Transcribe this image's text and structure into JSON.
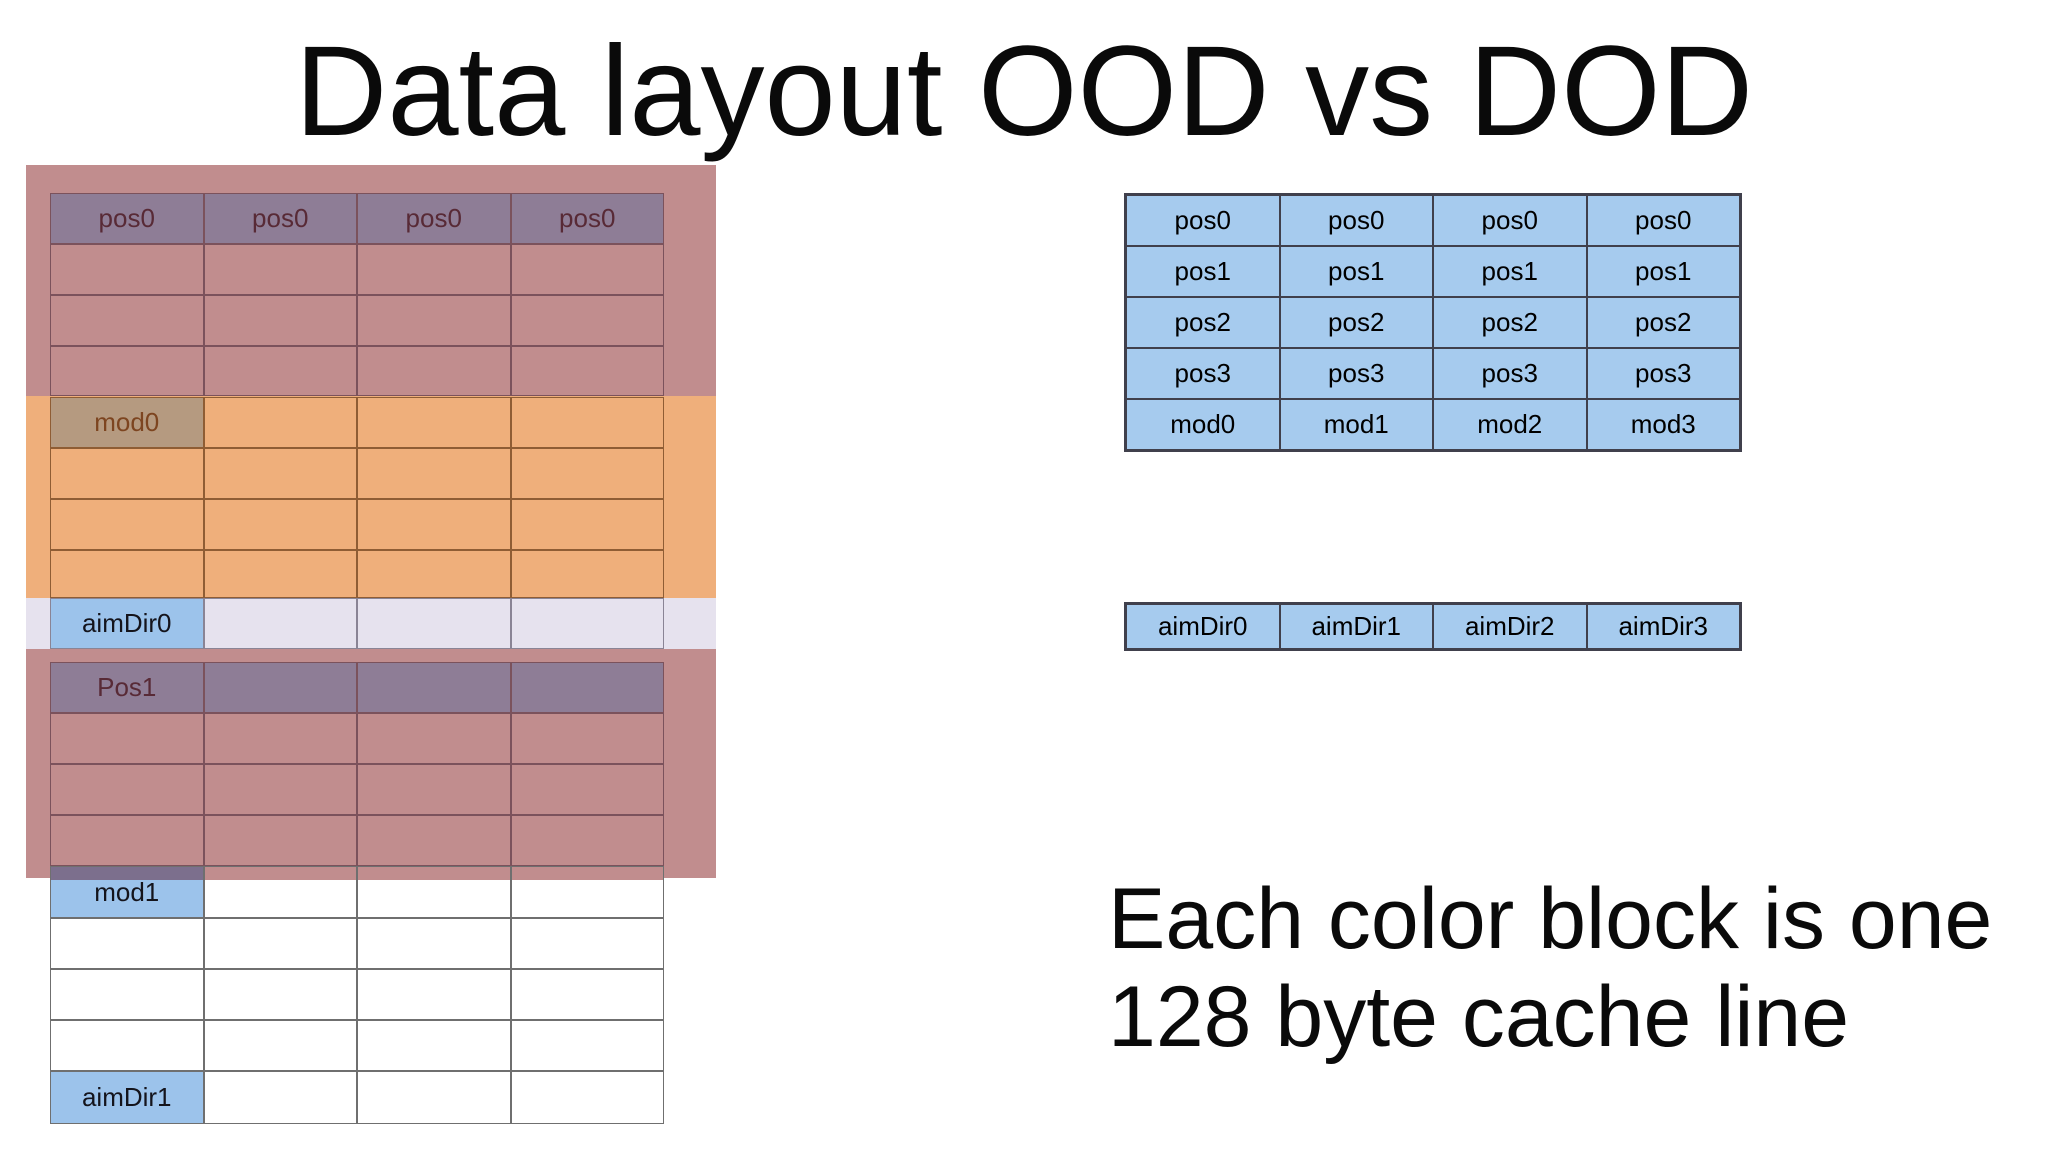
{
  "title": "Data layout OOD vs DOD",
  "caption": {
    "line1": "Each color block is one",
    "line2": "128 byte cache line"
  },
  "ood_diagram": {
    "rows": [
      [
        "pos0",
        "pos0",
        "pos0",
        "pos0"
      ],
      [
        "",
        "",
        "",
        ""
      ],
      [
        "",
        "",
        "",
        ""
      ],
      [
        "",
        "",
        "",
        ""
      ],
      [
        "mod0",
        "",
        "",
        ""
      ],
      [
        "",
        "",
        "",
        ""
      ],
      [
        "",
        "",
        "",
        ""
      ],
      [
        "",
        "",
        "",
        ""
      ],
      [
        "aimDir0",
        "",
        "",
        ""
      ],
      [
        "Pos1",
        "",
        "",
        ""
      ],
      [
        "",
        "",
        "",
        ""
      ],
      [
        "",
        "",
        "",
        ""
      ],
      [
        "",
        "",
        "",
        ""
      ],
      [
        "mod1",
        "",
        "",
        ""
      ],
      [
        "",
        "",
        "",
        ""
      ],
      [
        "",
        "",
        "",
        ""
      ],
      [
        "",
        "",
        "",
        ""
      ],
      [
        "aimDir1",
        "",
        "",
        ""
      ]
    ]
  },
  "dod_diagram": {
    "rows": [
      [
        "pos0",
        "pos0",
        "pos0",
        "pos0"
      ],
      [
        "pos1",
        "pos1",
        "pos1",
        "pos1"
      ],
      [
        "pos2",
        "pos2",
        "pos2",
        "pos2"
      ],
      [
        "pos3",
        "pos3",
        "pos3",
        "pos3"
      ],
      [
        "mod0",
        "mod1",
        "mod2",
        "mod3"
      ]
    ],
    "aimdir_row": [
      "aimDir0",
      "aimDir1",
      "aimDir2",
      "aimDir3"
    ]
  },
  "colors": {
    "cache_line_red": "#c18d8e",
    "cache_line_orange": "#efaf7b",
    "cache_line_lavender": "#e6e2ee",
    "pos_header_purple": "#8e7d96",
    "cell_blue_left": "#9cc3eb",
    "cell_blue_right": "#a6cbee",
    "text_dark_red": "#582a36",
    "text_dark_brown": "#7d4520"
  }
}
